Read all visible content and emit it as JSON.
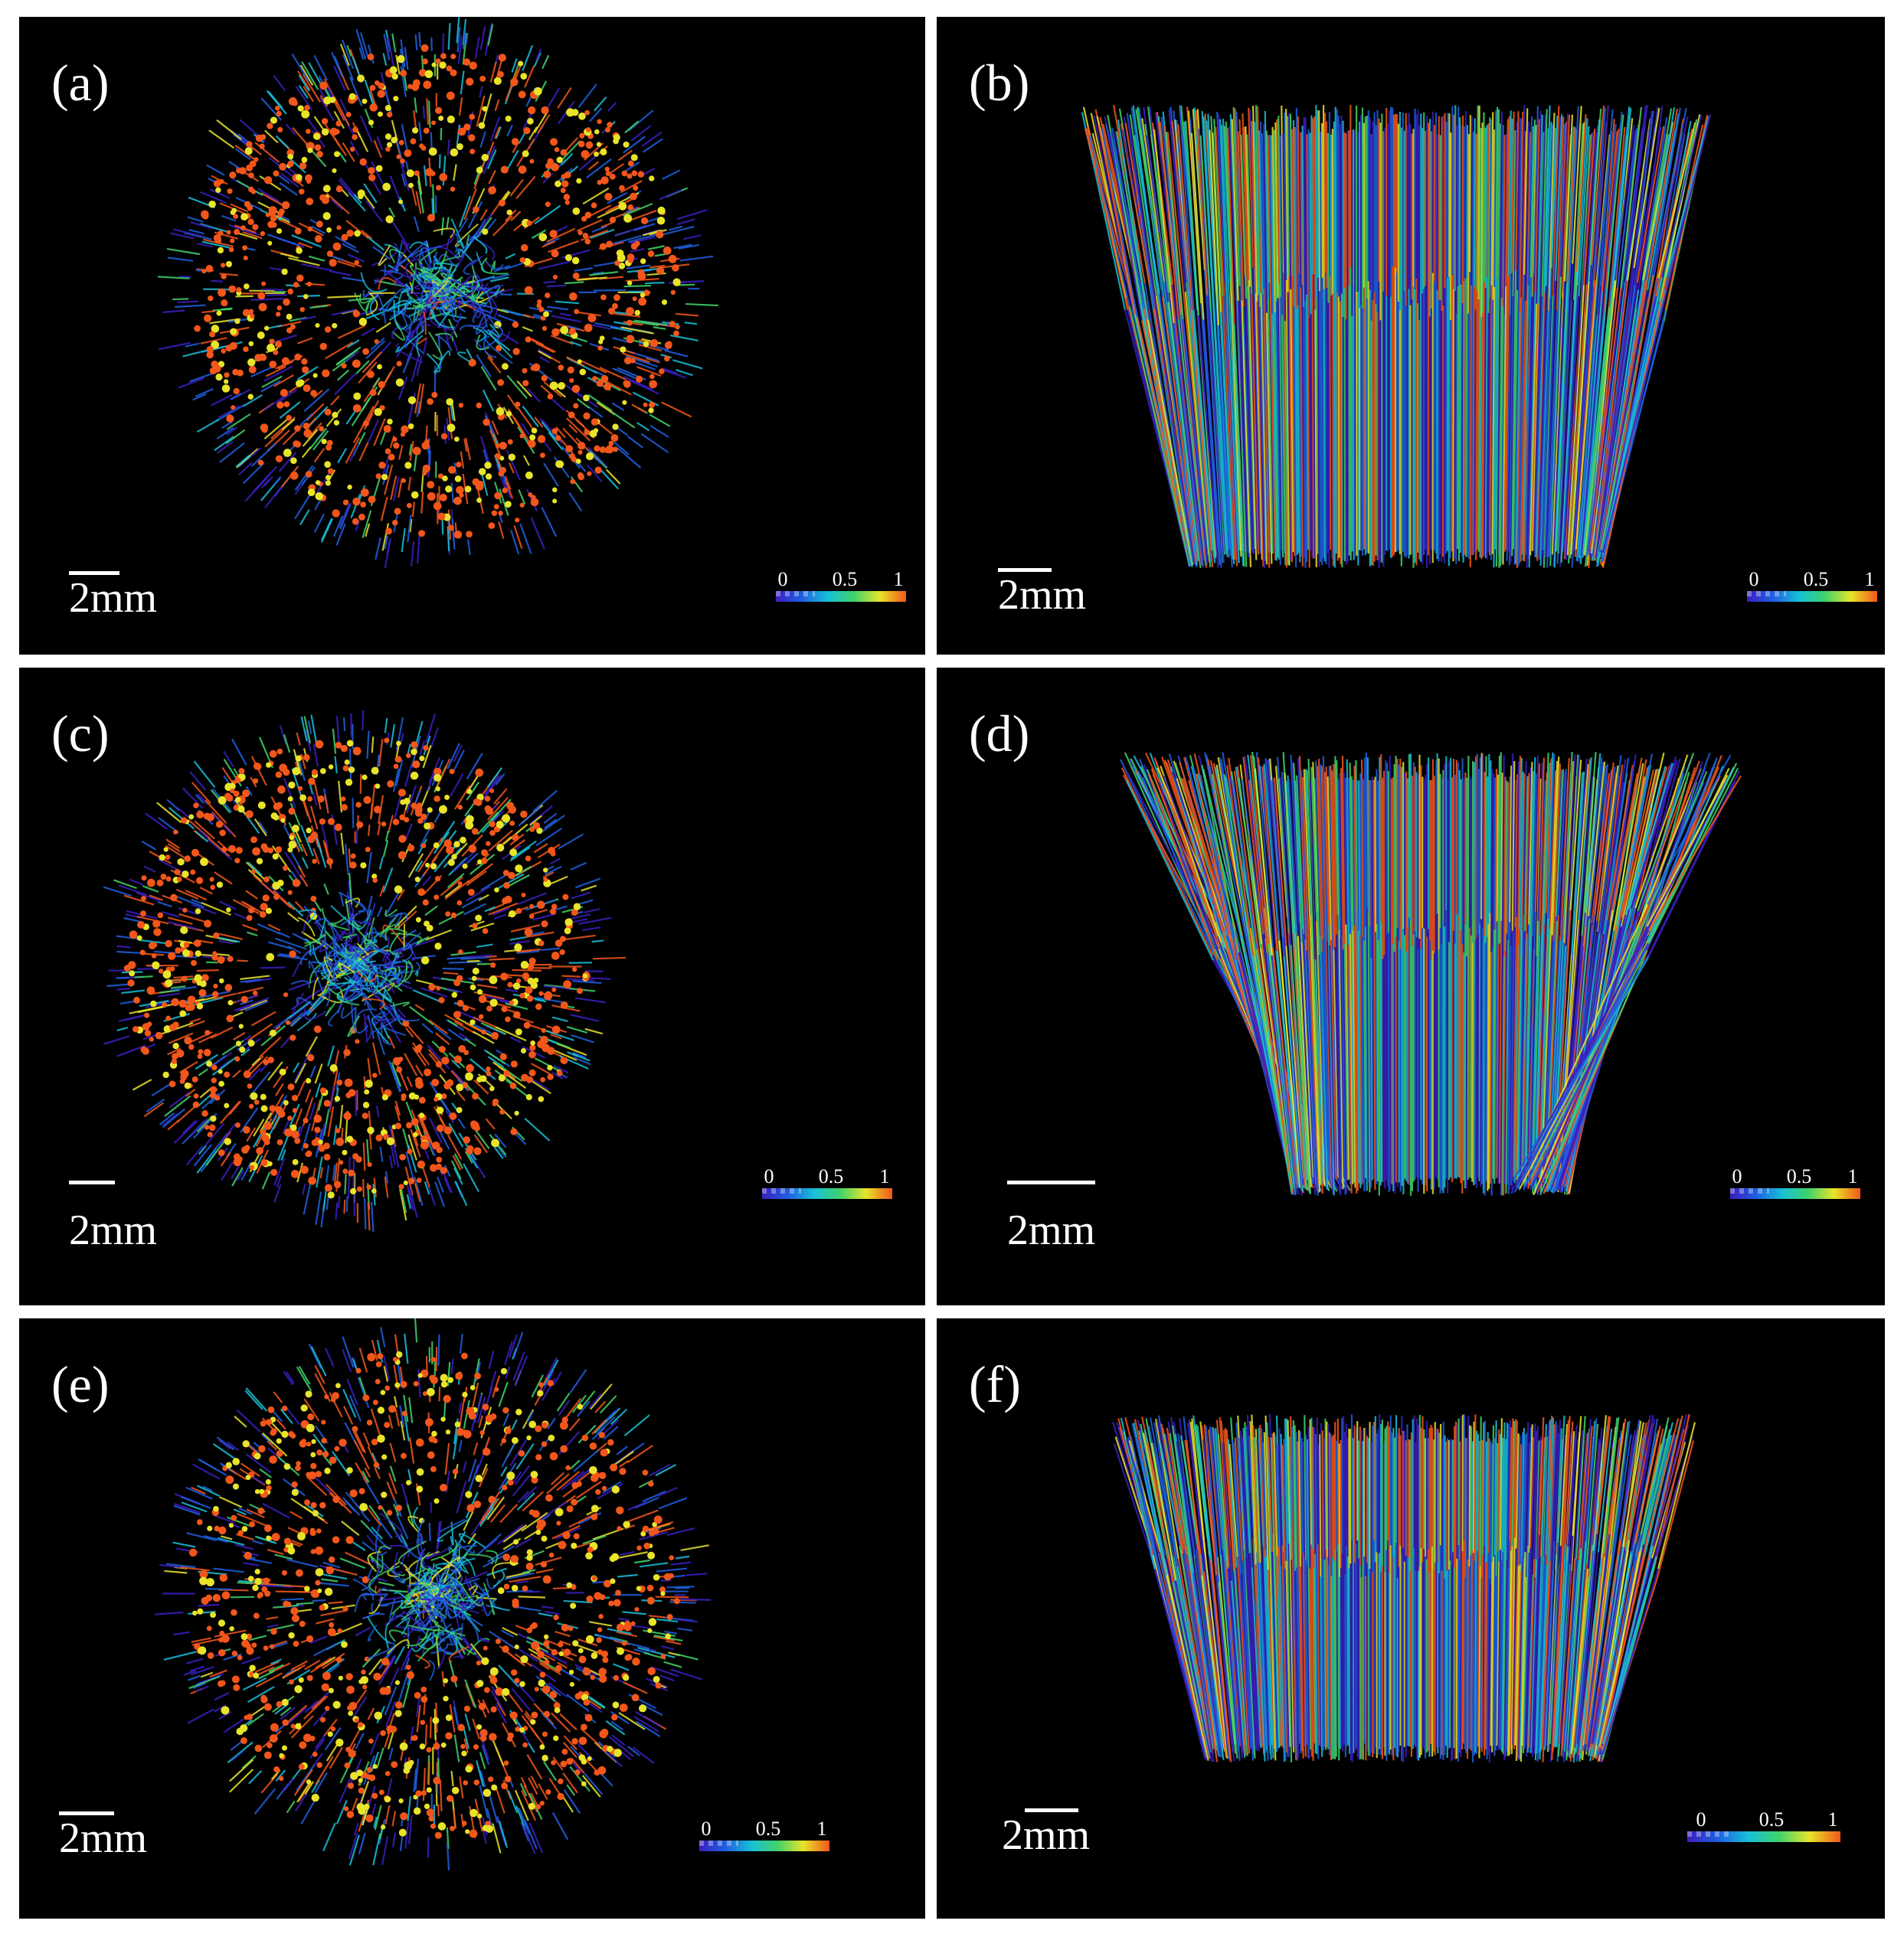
{
  "panels": [
    {
      "label": "(a)",
      "scale": "2mm",
      "cbar_min": "0",
      "cbar_mid": "0.5",
      "cbar_max": "1",
      "view": "top"
    },
    {
      "label": "(b)",
      "scale": "2mm",
      "cbar_min": "0",
      "cbar_mid": "0.5",
      "cbar_max": "1",
      "view": "side"
    },
    {
      "label": "(c)",
      "scale": "2mm",
      "cbar_min": "0",
      "cbar_mid": "0.5",
      "cbar_max": "1",
      "view": "top"
    },
    {
      "label": "(d)",
      "scale": "2mm",
      "cbar_min": "0",
      "cbar_mid": "0.5",
      "cbar_max": "1",
      "view": "side"
    },
    {
      "label": "(e)",
      "scale": "2mm",
      "cbar_min": "0",
      "cbar_mid": "0.5",
      "cbar_max": "1",
      "view": "top"
    },
    {
      "label": "(f)",
      "scale": "2mm",
      "cbar_min": "0",
      "cbar_mid": "0.5",
      "cbar_max": "1",
      "view": "side"
    }
  ],
  "colormap": [
    "#3a1fbf",
    "#1f5fe0",
    "#17c0d8",
    "#3fd36a",
    "#e8e42a",
    "#f2561b"
  ]
}
